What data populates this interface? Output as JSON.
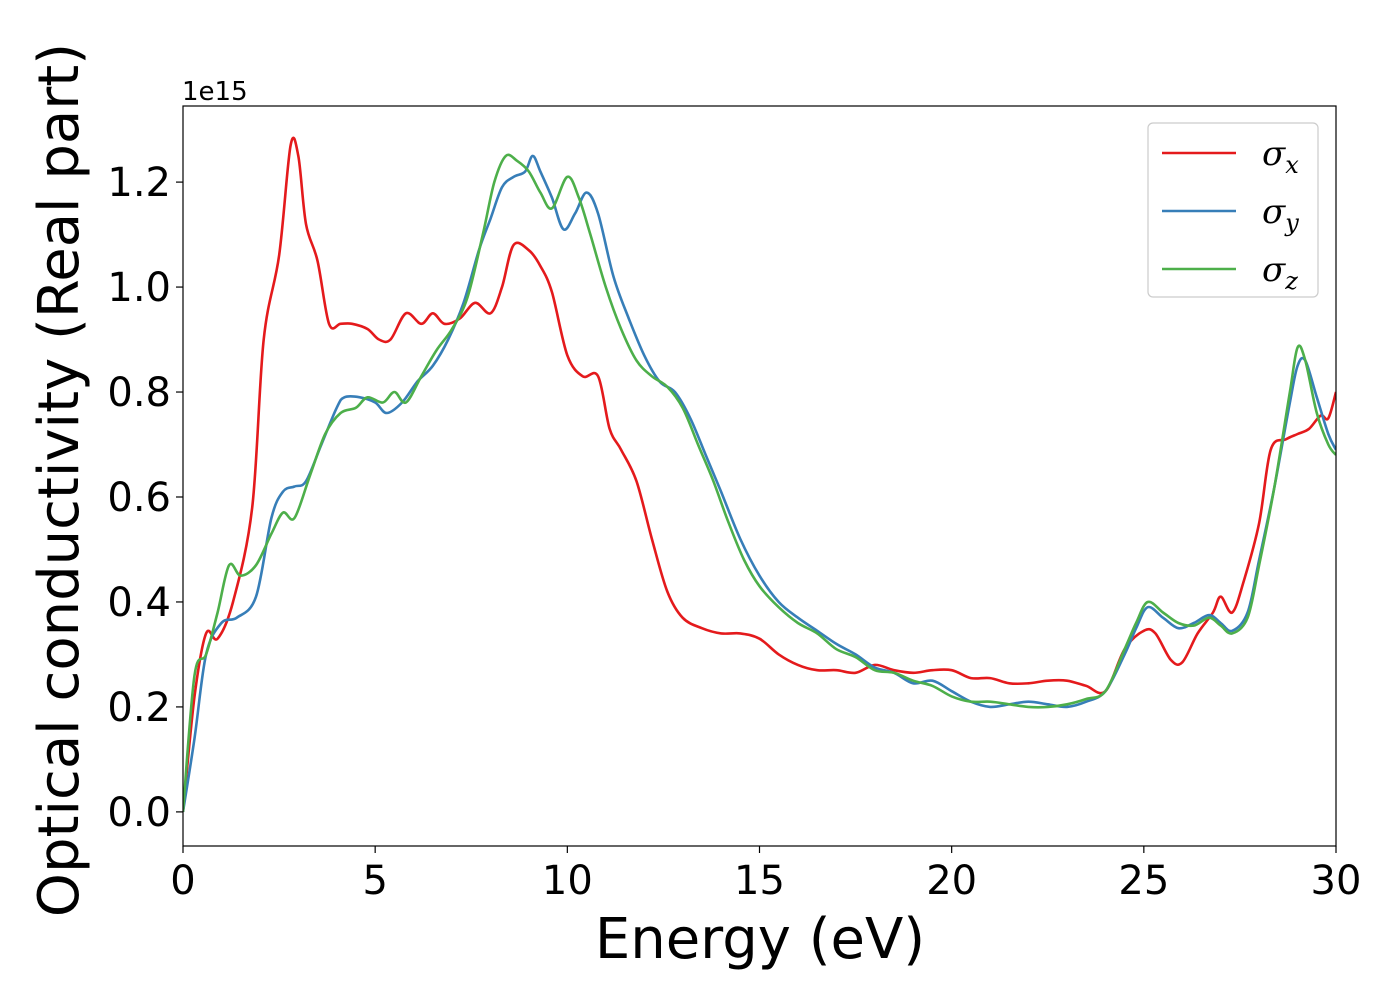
{
  "chart_data": {
    "type": "line",
    "xlabel": "Energy (eV)",
    "ylabel": "Optical conductivity (Real part)",
    "y_offset_label": "1e15",
    "xlim": [
      0,
      30
    ],
    "ylim": [
      -0.065,
      1.345
    ],
    "x_ticks": [
      0,
      5,
      10,
      15,
      20,
      25,
      30
    ],
    "x_tick_labels": [
      "0",
      "5",
      "10",
      "15",
      "20",
      "25",
      "30"
    ],
    "y_ticks": [
      0.0,
      0.2,
      0.4,
      0.6,
      0.8,
      1.0,
      1.2
    ],
    "y_tick_labels": [
      "0.0",
      "0.2",
      "0.4",
      "0.6",
      "0.8",
      "1.0",
      "1.2"
    ],
    "grid": false,
    "legend_position": "top-right",
    "series": [
      {
        "name": "σ",
        "subscript": "x",
        "color": "#e41a1c",
        "x": [
          0,
          0.3,
          0.6,
          0.9,
          1.3,
          1.8,
          2.1,
          2.5,
          2.8,
          3.0,
          3.2,
          3.5,
          3.8,
          4.1,
          4.4,
          4.8,
          5.1,
          5.4,
          5.8,
          6.2,
          6.5,
          6.8,
          7.2,
          7.6,
          8.0,
          8.3,
          8.6,
          9.0,
          9.3,
          9.6,
          10.0,
          10.4,
          10.8,
          11.1,
          11.4,
          11.8,
          12.2,
          12.6,
          13.0,
          13.5,
          14.0,
          14.5,
          15.0,
          15.5,
          16.0,
          16.5,
          17.0,
          17.5,
          18.0,
          18.5,
          19.0,
          19.5,
          20.0,
          20.5,
          21.0,
          21.5,
          22.0,
          22.5,
          23.0,
          23.5,
          24.0,
          24.5,
          25.0,
          25.3,
          25.7,
          26.0,
          26.4,
          26.8,
          27.0,
          27.3,
          27.6,
          28.0,
          28.3,
          28.7,
          29.0,
          29.3,
          29.6,
          29.8,
          30.0
        ],
        "y": [
          0.0,
          0.22,
          0.34,
          0.33,
          0.4,
          0.58,
          0.9,
          1.06,
          1.27,
          1.25,
          1.12,
          1.05,
          0.93,
          0.93,
          0.93,
          0.92,
          0.9,
          0.9,
          0.95,
          0.93,
          0.95,
          0.93,
          0.94,
          0.97,
          0.95,
          1.0,
          1.08,
          1.07,
          1.04,
          0.99,
          0.87,
          0.83,
          0.83,
          0.73,
          0.69,
          0.63,
          0.52,
          0.42,
          0.37,
          0.35,
          0.34,
          0.34,
          0.33,
          0.3,
          0.28,
          0.27,
          0.27,
          0.265,
          0.28,
          0.27,
          0.265,
          0.27,
          0.27,
          0.255,
          0.255,
          0.245,
          0.245,
          0.25,
          0.25,
          0.24,
          0.23,
          0.31,
          0.345,
          0.34,
          0.29,
          0.285,
          0.34,
          0.38,
          0.41,
          0.38,
          0.44,
          0.55,
          0.69,
          0.71,
          0.72,
          0.73,
          0.755,
          0.75,
          0.8
        ]
      },
      {
        "name": "σ",
        "subscript": "y",
        "color": "#377eb8",
        "x": [
          0,
          0.3,
          0.6,
          1.0,
          1.4,
          1.9,
          2.3,
          2.6,
          2.9,
          3.2,
          3.6,
          4.0,
          4.2,
          4.6,
          5.0,
          5.3,
          5.7,
          6.1,
          6.5,
          6.9,
          7.3,
          7.7,
          8.0,
          8.3,
          8.6,
          8.9,
          9.1,
          9.3,
          9.6,
          9.9,
          10.2,
          10.5,
          10.8,
          11.2,
          11.6,
          12.0,
          12.4,
          12.8,
          13.2,
          13.6,
          14.0,
          14.5,
          15.0,
          15.5,
          16.0,
          16.5,
          17.0,
          17.5,
          18.0,
          18.5,
          19.0,
          19.5,
          20.0,
          20.5,
          21.0,
          21.5,
          22.0,
          22.5,
          23.0,
          23.5,
          24.0,
          24.5,
          24.8,
          25.1,
          25.5,
          25.9,
          26.3,
          26.7,
          27.0,
          27.3,
          27.7,
          28.0,
          28.4,
          28.8,
          29.0,
          29.2,
          29.5,
          29.8,
          30.0
        ],
        "y": [
          0.0,
          0.14,
          0.3,
          0.36,
          0.37,
          0.41,
          0.56,
          0.61,
          0.62,
          0.63,
          0.7,
          0.77,
          0.79,
          0.79,
          0.78,
          0.76,
          0.78,
          0.82,
          0.85,
          0.9,
          0.97,
          1.07,
          1.13,
          1.19,
          1.21,
          1.22,
          1.25,
          1.22,
          1.17,
          1.11,
          1.14,
          1.18,
          1.14,
          1.02,
          0.94,
          0.87,
          0.82,
          0.8,
          0.75,
          0.68,
          0.61,
          0.52,
          0.45,
          0.4,
          0.37,
          0.345,
          0.32,
          0.3,
          0.275,
          0.265,
          0.245,
          0.25,
          0.23,
          0.21,
          0.2,
          0.205,
          0.21,
          0.205,
          0.2,
          0.21,
          0.23,
          0.3,
          0.35,
          0.39,
          0.37,
          0.35,
          0.36,
          0.375,
          0.36,
          0.345,
          0.38,
          0.48,
          0.62,
          0.78,
          0.85,
          0.86,
          0.79,
          0.72,
          0.69
        ]
      },
      {
        "name": "σ",
        "subscript": "z",
        "color": "#4daf4a",
        "x": [
          0,
          0.3,
          0.6,
          0.9,
          1.2,
          1.5,
          1.9,
          2.3,
          2.6,
          2.9,
          3.3,
          3.7,
          4.1,
          4.5,
          4.8,
          5.2,
          5.5,
          5.8,
          6.2,
          6.6,
          7.0,
          7.4,
          7.8,
          8.1,
          8.4,
          8.7,
          9.0,
          9.3,
          9.6,
          10.0,
          10.3,
          10.6,
          11.0,
          11.4,
          11.8,
          12.2,
          12.6,
          13.0,
          13.4,
          13.8,
          14.2,
          14.6,
          15.0,
          15.5,
          16.0,
          16.5,
          17.0,
          17.5,
          18.0,
          18.5,
          19.0,
          19.5,
          20.0,
          20.5,
          21.0,
          21.5,
          22.0,
          22.5,
          23.0,
          23.5,
          24.0,
          24.5,
          24.8,
          25.1,
          25.5,
          25.9,
          26.3,
          26.7,
          27.0,
          27.3,
          27.7,
          28.0,
          28.4,
          28.8,
          29.0,
          29.2,
          29.5,
          29.8,
          30.0
        ],
        "y": [
          0.0,
          0.26,
          0.3,
          0.38,
          0.47,
          0.45,
          0.47,
          0.53,
          0.57,
          0.56,
          0.64,
          0.72,
          0.76,
          0.77,
          0.79,
          0.78,
          0.8,
          0.78,
          0.83,
          0.88,
          0.92,
          0.98,
          1.1,
          1.2,
          1.25,
          1.24,
          1.22,
          1.18,
          1.15,
          1.21,
          1.17,
          1.1,
          1.0,
          0.92,
          0.86,
          0.83,
          0.81,
          0.77,
          0.7,
          0.63,
          0.55,
          0.48,
          0.43,
          0.39,
          0.36,
          0.34,
          0.31,
          0.295,
          0.27,
          0.265,
          0.25,
          0.24,
          0.22,
          0.21,
          0.21,
          0.205,
          0.2,
          0.2,
          0.205,
          0.215,
          0.23,
          0.31,
          0.36,
          0.4,
          0.38,
          0.36,
          0.355,
          0.37,
          0.355,
          0.34,
          0.37,
          0.47,
          0.62,
          0.8,
          0.885,
          0.86,
          0.76,
          0.7,
          0.68
        ]
      }
    ]
  }
}
